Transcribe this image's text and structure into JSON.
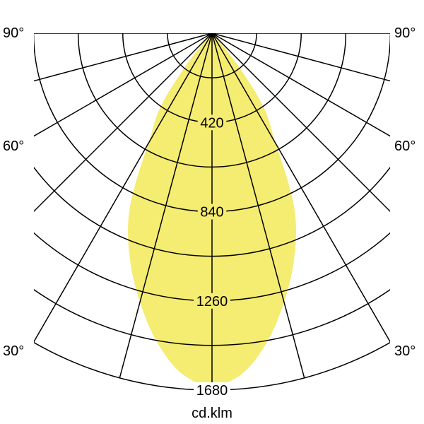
{
  "chart_data": {
    "type": "polar",
    "unit_label": "cd.klm",
    "radial_ticks": [
      420,
      840,
      1260,
      1680
    ],
    "radial_max": 1680,
    "radial_grid_step": 210,
    "angle_grid_step_deg": 15,
    "angle_labels": [
      "90°",
      "60°",
      "30°"
    ],
    "fill_color": "#f5ec72",
    "series": [
      {
        "angles_deg": [
          0,
          5,
          10,
          15,
          20,
          25,
          30,
          35,
          40,
          45
        ],
        "values": [
          1660,
          1610,
          1480,
          1310,
          1130,
          920,
          600,
          420,
          130,
          0
        ]
      }
    ]
  }
}
